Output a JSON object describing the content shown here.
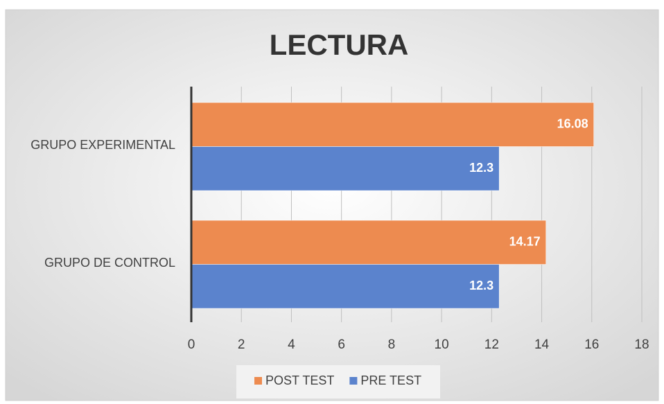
{
  "chart_data": {
    "type": "hbar",
    "title": "LECTURA",
    "categories": [
      "GRUPO EXPERIMENTAL",
      "GRUPO DE CONTROL"
    ],
    "series": [
      {
        "name": "POST TEST",
        "color": "#ed8b50",
        "values": [
          16.08,
          14.17
        ]
      },
      {
        "name": "PRE TEST",
        "color": "#5b83cd",
        "values": [
          12.3,
          12.3
        ]
      }
    ],
    "xlim": [
      0,
      18
    ],
    "xticks": [
      0,
      2,
      4,
      6,
      8,
      10,
      12,
      14,
      16,
      18
    ],
    "grid": true,
    "legend": "bottom"
  }
}
